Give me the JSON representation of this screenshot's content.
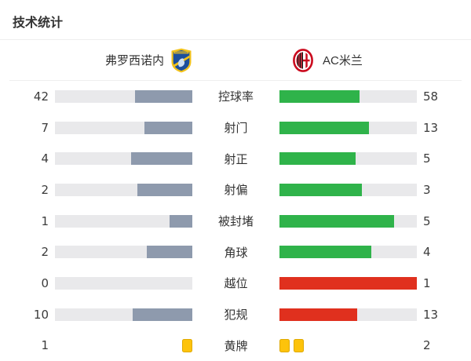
{
  "title": "技术统计",
  "teams": {
    "home": {
      "name": "弗罗西诺内"
    },
    "away": {
      "name": "AC米兰"
    }
  },
  "rows": [
    {
      "label": "控球率",
      "home": "42",
      "away": "58",
      "home_pct": 42,
      "away_pct": 58,
      "away_color": "green",
      "type": "bar"
    },
    {
      "label": "射门",
      "home": "7",
      "away": "13",
      "home_pct": 35,
      "away_pct": 65,
      "away_color": "green",
      "type": "bar"
    },
    {
      "label": "射正",
      "home": "4",
      "away": "5",
      "home_pct": 44.4,
      "away_pct": 55.6,
      "away_color": "green",
      "type": "bar"
    },
    {
      "label": "射偏",
      "home": "2",
      "away": "3",
      "home_pct": 40,
      "away_pct": 60,
      "away_color": "green",
      "type": "bar"
    },
    {
      "label": "被封堵",
      "home": "1",
      "away": "5",
      "home_pct": 16.7,
      "away_pct": 83.3,
      "away_color": "green",
      "type": "bar"
    },
    {
      "label": "角球",
      "home": "2",
      "away": "4",
      "home_pct": 33.3,
      "away_pct": 66.7,
      "away_color": "green",
      "type": "bar"
    },
    {
      "label": "越位",
      "home": "0",
      "away": "1",
      "home_pct": 0,
      "away_pct": 100,
      "away_color": "red",
      "type": "bar"
    },
    {
      "label": "犯规",
      "home": "10",
      "away": "13",
      "home_pct": 43.5,
      "away_pct": 56.5,
      "away_color": "red",
      "type": "bar"
    },
    {
      "label": "黄牌",
      "home": "1",
      "away": "2",
      "home_cards": 1,
      "away_cards": 2,
      "type": "cards"
    }
  ],
  "chart_data": {
    "type": "bar",
    "title": "技术统计",
    "categories": [
      "控球率",
      "射门",
      "射正",
      "射偏",
      "被封堵",
      "角球",
      "越位",
      "犯规",
      "黄牌"
    ],
    "series": [
      {
        "name": "弗罗西诺内",
        "values": [
          42,
          7,
          4,
          2,
          1,
          2,
          0,
          10,
          1
        ]
      },
      {
        "name": "AC米兰",
        "values": [
          58,
          13,
          5,
          3,
          5,
          4,
          1,
          13,
          2
        ]
      }
    ],
    "legend_position": "top",
    "layout": "mirrored horizontal bars, labels centered, home fills right-aligned gray-blue, away fills left-aligned green (red for 越位/犯规), yellow-card icons for 黄牌"
  },
  "colors": {
    "home_bar": "#8e9aad",
    "away_bar_green": "#2fb34a",
    "away_bar_red": "#e0301e",
    "track": "#e9e9eb",
    "yellow_card": "#fdc30b",
    "text": "#333333",
    "divider": "#eeeeee"
  }
}
